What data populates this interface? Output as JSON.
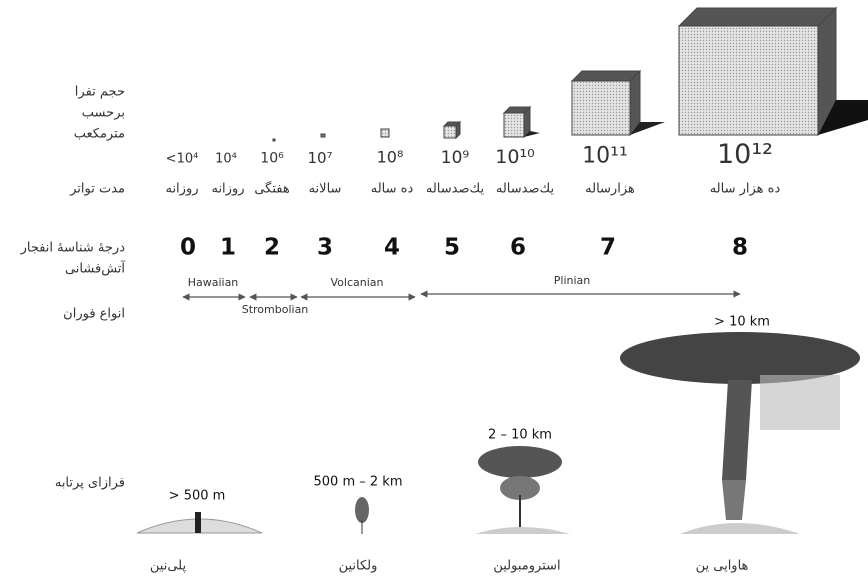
{
  "labels": {
    "volume": [
      "حجم تفرا",
      "برحسب",
      "مترمکعب"
    ],
    "frequency": "مدت تواتر",
    "vei": [
      "درجهٔ شناسهٔ انفجار",
      "آتش‌فشانی"
    ],
    "types": "انواع فوران",
    "height": "فرازای پرتابه"
  },
  "columns": [
    {
      "volume": "<10⁴",
      "frequency": "روزانه",
      "vei": "0"
    },
    {
      "volume": "10⁴",
      "frequency": "روزانه",
      "vei": "1"
    },
    {
      "volume": "10⁶",
      "frequency": "هفتگی",
      "vei": "2"
    },
    {
      "volume": "10⁷",
      "frequency": "سالانه",
      "vei": "3"
    },
    {
      "volume": "10⁸",
      "frequency": "ده ساله",
      "vei": "4"
    },
    {
      "volume": "10⁹",
      "frequency": "یك‌صدساله",
      "vei": "5"
    },
    {
      "volume": "10¹⁰",
      "frequency": "یك‌صدساله",
      "vei": "6"
    },
    {
      "volume": "10¹¹",
      "frequency": "هزارساله",
      "vei": "7"
    },
    {
      "volume": "10¹²",
      "frequency": "ده هزار ساله",
      "vei": "8"
    }
  ],
  "eruption_types": [
    "Hawaiian",
    "Strombolian",
    "Volcanian",
    "Plinian"
  ],
  "plumes": [
    {
      "height": "> 500 m",
      "label": "پلی‌نین"
    },
    {
      "height": "500 m – 2 km",
      "label": "ولکانین"
    },
    {
      "height": "2 – 10 km",
      "label": "استرومبولین"
    },
    {
      "height": "> 10 km",
      "label": "هاوایی ین"
    }
  ]
}
